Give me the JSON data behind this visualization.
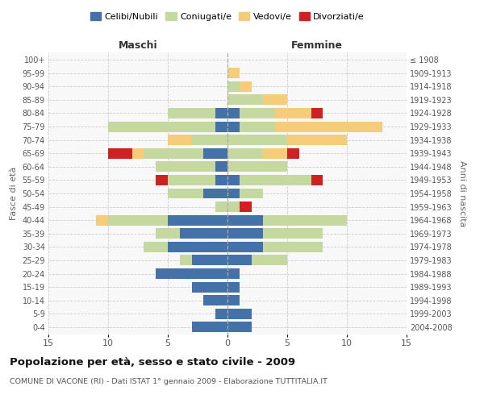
{
  "age_groups": [
    "0-4",
    "5-9",
    "10-14",
    "15-19",
    "20-24",
    "25-29",
    "30-34",
    "35-39",
    "40-44",
    "45-49",
    "50-54",
    "55-59",
    "60-64",
    "65-69",
    "70-74",
    "75-79",
    "80-84",
    "85-89",
    "90-94",
    "95-99",
    "100+"
  ],
  "birth_years": [
    "2004-2008",
    "1999-2003",
    "1994-1998",
    "1989-1993",
    "1984-1988",
    "1979-1983",
    "1974-1978",
    "1969-1973",
    "1964-1968",
    "1959-1963",
    "1954-1958",
    "1949-1953",
    "1944-1948",
    "1939-1943",
    "1934-1938",
    "1929-1933",
    "1924-1928",
    "1919-1923",
    "1914-1918",
    "1909-1913",
    "≤ 1908"
  ],
  "maschi": {
    "celibi": [
      3,
      1,
      2,
      3,
      6,
      3,
      5,
      4,
      5,
      0,
      2,
      1,
      1,
      2,
      0,
      1,
      1,
      0,
      0,
      0,
      0
    ],
    "coniugati": [
      0,
      0,
      0,
      0,
      0,
      1,
      2,
      2,
      5,
      1,
      3,
      4,
      5,
      5,
      3,
      9,
      4,
      0,
      0,
      0,
      0
    ],
    "vedovi": [
      0,
      0,
      0,
      0,
      0,
      0,
      0,
      0,
      1,
      0,
      0,
      0,
      0,
      1,
      2,
      0,
      0,
      0,
      0,
      0,
      0
    ],
    "divorziati": [
      0,
      0,
      0,
      0,
      0,
      0,
      0,
      0,
      0,
      0,
      0,
      1,
      0,
      2,
      0,
      0,
      0,
      0,
      0,
      0,
      0
    ]
  },
  "femmine": {
    "nubili": [
      2,
      2,
      1,
      1,
      1,
      2,
      3,
      3,
      3,
      0,
      1,
      1,
      0,
      0,
      0,
      1,
      1,
      0,
      0,
      0,
      0
    ],
    "coniugate": [
      0,
      0,
      0,
      0,
      0,
      3,
      5,
      5,
      7,
      1,
      2,
      6,
      5,
      3,
      5,
      3,
      3,
      3,
      1,
      0,
      0
    ],
    "vedove": [
      0,
      0,
      0,
      0,
      0,
      0,
      0,
      0,
      0,
      0,
      0,
      0,
      0,
      2,
      5,
      9,
      3,
      2,
      1,
      1,
      0
    ],
    "divorziate": [
      0,
      0,
      0,
      0,
      0,
      0,
      0,
      0,
      0,
      1,
      0,
      1,
      0,
      1,
      0,
      0,
      1,
      0,
      0,
      0,
      0
    ]
  },
  "colors": {
    "celibi_nubili": "#4472a8",
    "coniugati": "#c5d8a0",
    "vedovi": "#f5cc7a",
    "divorziati": "#cc2222"
  },
  "title": "Popolazione per età, sesso e stato civile - 2009",
  "subtitle": "COMUNE DI VACONE (RI) - Dati ISTAT 1° gennaio 2009 - Elaborazione TUTTITALIA.IT",
  "xlabel_left": "Maschi",
  "xlabel_right": "Femmine",
  "ylabel_left": "Fasce di età",
  "ylabel_right": "Anni di nascita",
  "xlim": 15,
  "legend_labels": [
    "Celibi/Nubili",
    "Coniugati/e",
    "Vedovi/e",
    "Divorziati/e"
  ],
  "bg_color": "#ffffff",
  "grid_color": "#cccccc"
}
